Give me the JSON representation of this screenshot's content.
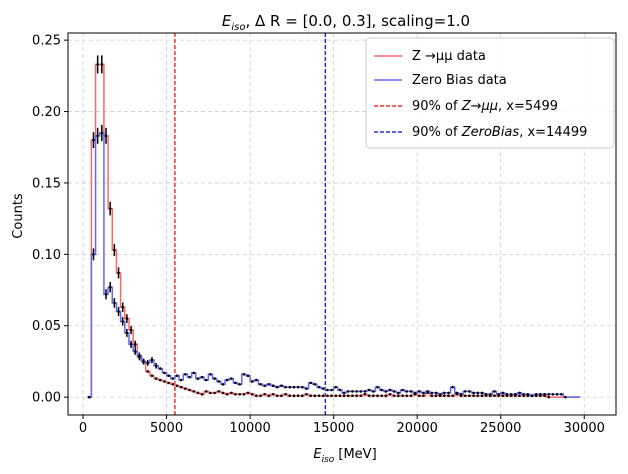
{
  "chart_data": {
    "type": "step-histogram",
    "title_parts": {
      "var": "E",
      "sub": "iso",
      "rest": ", Δ R = [0.0, 0.3], scaling=1.0"
    },
    "xlabel_parts": {
      "var": "E",
      "sub": "iso",
      "rest": " [MeV]"
    },
    "ylabel": "Counts",
    "xlim": [
      -900,
      31900
    ],
    "ylim": [
      -0.0125,
      0.255
    ],
    "xticks": [
      0,
      5000,
      10000,
      15000,
      20000,
      25000,
      30000
    ],
    "yticks": [
      0.0,
      0.05,
      0.1,
      0.15,
      0.2,
      0.25
    ],
    "ytick_labels": [
      "0.00",
      "0.05",
      "0.10",
      "0.15",
      "0.20",
      "0.25"
    ],
    "grid": true,
    "legend_position": "top-right",
    "bin_edges": [
      250,
      500,
      750,
      1000,
      1250,
      1500,
      1750,
      2000,
      2250,
      2500,
      2750,
      3000,
      3250,
      3500,
      3750,
      4000,
      4250,
      4500,
      4750,
      5000,
      5250,
      5500,
      5750,
      6000,
      6250,
      6500,
      6750,
      7000,
      7250,
      7500,
      7750,
      8000,
      8250,
      8500,
      8750,
      9000,
      9250,
      9500,
      9750,
      10000,
      10250,
      10500,
      10750,
      11000,
      11250,
      11500,
      11750,
      12000,
      12250,
      12500,
      12750,
      13000,
      13250,
      13500,
      13750,
      14000,
      14250,
      14500,
      14750,
      15000,
      15250,
      15500,
      15750,
      16000,
      16250,
      16500,
      16750,
      17000,
      17250,
      17500,
      17750,
      18000,
      18250,
      18500,
      18750,
      19000,
      19250,
      19500,
      19750,
      20000,
      20250,
      20500,
      20750,
      21000,
      21250,
      21500,
      21750,
      22000,
      22250,
      22500,
      22750,
      23000,
      23250,
      23500,
      23750,
      24000,
      24250,
      24500,
      24750,
      25000,
      25250,
      25500,
      25750,
      26000,
      26250,
      26500,
      26750,
      27000,
      27250,
      27500,
      27750,
      28000,
      28250,
      28500,
      28750,
      29000,
      29250,
      29500,
      29750
    ],
    "series": [
      {
        "name": "Z →μμ data",
        "color": "#ff6666",
        "values": [
          0.0,
          0.18,
          0.233,
          0.233,
          0.183,
          0.132,
          0.103,
          0.087,
          0.063,
          0.055,
          0.047,
          0.037,
          0.028,
          0.025,
          0.018,
          0.015,
          0.013,
          0.012,
          0.011,
          0.01,
          0.009,
          0.008,
          0.007,
          0.006,
          0.005,
          0.004,
          0.003,
          0.002,
          0.004,
          0.003,
          0.003,
          0.004,
          0.003,
          0.002,
          0.003,
          0.002,
          0.002,
          0.002,
          0.003,
          0.002,
          0.001,
          0.001,
          0.002,
          0.001,
          0.002,
          0.001,
          0.001,
          0.002,
          0.001,
          0.001,
          0.001,
          0.001,
          0.002,
          0.001,
          0.001,
          0.001,
          0.001,
          0.001,
          0.001,
          0.001,
          0.001,
          0.001,
          0.001,
          0.001,
          0.001,
          0.001,
          0.002,
          0.001,
          0.001,
          0.001,
          0.001,
          0.001,
          0.002,
          0.001,
          0.001,
          0.001,
          0.001,
          0.001,
          0.002,
          0.001,
          0.001,
          0.003,
          0.001,
          0.001,
          0.001,
          0.001,
          0.001,
          0.001,
          0.002,
          0.001,
          0.001,
          0.001,
          0.001,
          0.001,
          0.001,
          0.001,
          0.001,
          0.001,
          0.001,
          0.001,
          0.001,
          0.001,
          0.001,
          0.001,
          0.001,
          0.001,
          0.001,
          0.001,
          0.001,
          0.001,
          0.0
        ]
      },
      {
        "name": "Zero Bias data",
        "color": "#6666ee",
        "values": [
          0.0,
          0.1,
          0.183,
          0.185,
          0.072,
          0.077,
          0.066,
          0.06,
          0.053,
          0.045,
          0.037,
          0.032,
          0.029,
          0.025,
          0.024,
          0.026,
          0.022,
          0.02,
          0.017,
          0.015,
          0.013,
          0.015,
          0.012,
          0.016,
          0.014,
          0.017,
          0.013,
          0.014,
          0.012,
          0.016,
          0.013,
          0.011,
          0.009,
          0.012,
          0.013,
          0.01,
          0.009,
          0.016,
          0.015,
          0.011,
          0.012,
          0.009,
          0.008,
          0.009,
          0.008,
          0.007,
          0.008,
          0.007,
          0.007,
          0.007,
          0.007,
          0.007,
          0.006,
          0.01,
          0.009,
          0.007,
          0.006,
          0.005,
          0.005,
          0.007,
          0.005,
          0.003,
          0.004,
          0.004,
          0.004,
          0.004,
          0.004,
          0.005,
          0.004,
          0.007,
          0.005,
          0.004,
          0.005,
          0.004,
          0.003,
          0.005,
          0.004,
          0.004,
          0.003,
          0.004,
          0.003,
          0.004,
          0.003,
          0.003,
          0.002,
          0.003,
          0.003,
          0.007,
          0.003,
          0.002,
          0.004,
          0.004,
          0.003,
          0.003,
          0.003,
          0.002,
          0.002,
          0.004,
          0.002,
          0.003,
          0.002,
          0.002,
          0.002,
          0.003,
          0.002,
          0.002,
          0.001,
          0.002,
          0.002,
          0.002,
          0.002,
          0.002,
          0.002,
          0.002,
          0.0
        ]
      }
    ],
    "vlines": [
      {
        "x": 5499,
        "color": "#ee0000",
        "label_prefix": "90% of ",
        "label_math": "Z→μμ",
        "label_suffix": ", x=5499"
      },
      {
        "x": 14499,
        "color": "#0000cc",
        "label_prefix": "90% of ",
        "label_math": "ZeroBias",
        "label_suffix": ", x=14499"
      }
    ]
  }
}
